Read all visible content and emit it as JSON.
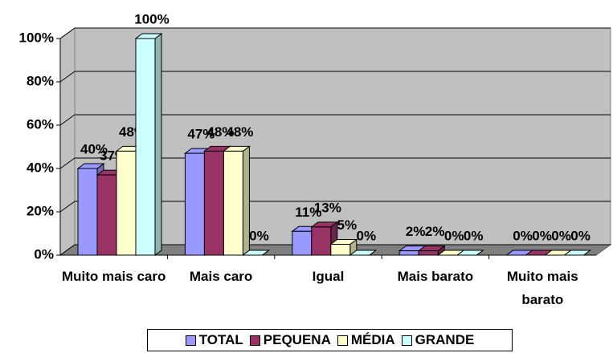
{
  "chart_data": {
    "type": "bar3d",
    "categories": [
      "Muito mais caro",
      "Mais caro",
      "Igual",
      "Mais barato",
      "Muito mais barato"
    ],
    "series": [
      {
        "name": "TOTAL",
        "color": "#9999ff",
        "values": [
          40,
          47,
          11,
          2,
          0
        ],
        "value_labels": [
          "40%",
          "47%",
          "11%",
          "2%",
          "0%"
        ]
      },
      {
        "name": "PEQUENA",
        "color": "#993366",
        "values": [
          37,
          48,
          13,
          2,
          0
        ],
        "value_labels": [
          "37%",
          "48%",
          "13%",
          "2%",
          "0%"
        ]
      },
      {
        "name": "MÉDIA",
        "color": "#ffffcc",
        "values": [
          48,
          48,
          5,
          0,
          0
        ],
        "value_labels": [
          "48%",
          "48%",
          "5%",
          "0%",
          "0%"
        ]
      },
      {
        "name": "GRANDE",
        "color": "#ccffff",
        "values": [
          100,
          0,
          0,
          0,
          0
        ],
        "value_labels": [
          "100%",
          "0%",
          "0%",
          "0%",
          "0%"
        ]
      }
    ],
    "ylim": [
      0,
      100
    ],
    "yticks": [
      {
        "value": 0,
        "label": "0%"
      },
      {
        "value": 20,
        "label": "20%"
      },
      {
        "value": 40,
        "label": "40%"
      },
      {
        "value": 60,
        "label": "60%"
      },
      {
        "value": 80,
        "label": "80%"
      },
      {
        "value": 100,
        "label": "100%"
      }
    ],
    "legend": "bottom"
  }
}
